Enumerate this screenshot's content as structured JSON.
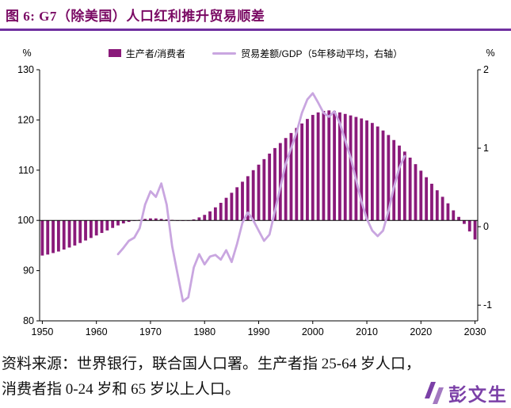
{
  "page": {
    "title": "图 6: G7（除美国）人口红利推升贸易顺差"
  },
  "legend": {
    "bar_label": "生产者/消费者",
    "line_label": "贸易差额/GDP（5年移动平均，右轴）"
  },
  "footer": {
    "line1": "资料来源：世界银行，联合国人口署。生产者指 25-64 岁人口，",
    "line2": "消费者指 0-24 岁和 65 岁以上人口。"
  },
  "watermark": {
    "text": "彭文生"
  },
  "colors": {
    "title": "#7a0a64",
    "rule": "#7030a0",
    "bar": "#8a1a7a",
    "line": "#c9a6e0",
    "axis": "#000000",
    "watermark": "#7030a0"
  },
  "chart_data": {
    "type": "combo",
    "title": "图 6: G7（除美国）人口红利推升贸易顺差",
    "x_range": [
      1950,
      2030
    ],
    "x_ticks": [
      1950,
      1960,
      1970,
      1980,
      1990,
      2000,
      2010,
      2020,
      2030
    ],
    "left_axis": {
      "unit": "%",
      "min": 80,
      "max": 130,
      "baseline": 100,
      "ticks": [
        130,
        120,
        110,
        100,
        90,
        80
      ]
    },
    "right_axis": {
      "unit": "%",
      "min": -1.2,
      "max": 2,
      "ticks": [
        2,
        1,
        0,
        -1
      ]
    },
    "bar_series": {
      "name": "生产者/消费者",
      "axis": "left",
      "color": "#8a1a7a",
      "start_year": 1950,
      "values": [
        93.0,
        93.2,
        93.5,
        93.8,
        94.2,
        94.6,
        95.0,
        95.5,
        96.0,
        96.5,
        97.0,
        97.5,
        98.0,
        98.5,
        99.0,
        99.4,
        99.7,
        99.9,
        100.1,
        100.3,
        100.4,
        100.4,
        100.3,
        100.2,
        100.1,
        100.0,
        99.9,
        100.0,
        100.2,
        100.6,
        101.1,
        101.8,
        102.6,
        103.5,
        104.5,
        105.5,
        106.6,
        107.7,
        108.8,
        110.0,
        111.1,
        112.2,
        113.3,
        114.4,
        115.4,
        116.4,
        117.4,
        118.4,
        119.3,
        120.2,
        121.0,
        121.5,
        121.8,
        121.9,
        121.8,
        121.5,
        121.2,
        120.9,
        120.6,
        120.3,
        119.9,
        119.4,
        118.7,
        117.9,
        117.0,
        116.0,
        114.9,
        113.7,
        112.5,
        111.2,
        109.9,
        108.6,
        107.3,
        106.0,
        104.7,
        103.4,
        102.0,
        100.7,
        99.3,
        97.8,
        96.2
      ]
    },
    "line_series": {
      "name": "贸易差额/GDP（5年移动平均，右轴）",
      "axis": "right",
      "color": "#c9a6e0",
      "start_year": 1964,
      "values": [
        -0.35,
        -0.27,
        -0.18,
        -0.14,
        -0.02,
        0.28,
        0.45,
        0.38,
        0.55,
        0.28,
        -0.25,
        -0.6,
        -0.95,
        -0.9,
        -0.52,
        -0.35,
        -0.48,
        -0.38,
        -0.36,
        -0.42,
        -0.3,
        -0.45,
        -0.22,
        0.05,
        0.18,
        0.08,
        -0.05,
        -0.18,
        -0.1,
        0.2,
        0.5,
        0.8,
        1.0,
        1.2,
        1.45,
        1.62,
        1.7,
        1.58,
        1.45,
        1.4,
        1.47,
        1.32,
        1.1,
        0.88,
        0.6,
        0.32,
        0.1,
        -0.05,
        -0.12,
        -0.05,
        0.2,
        0.5,
        0.75,
        0.9
      ]
    }
  }
}
